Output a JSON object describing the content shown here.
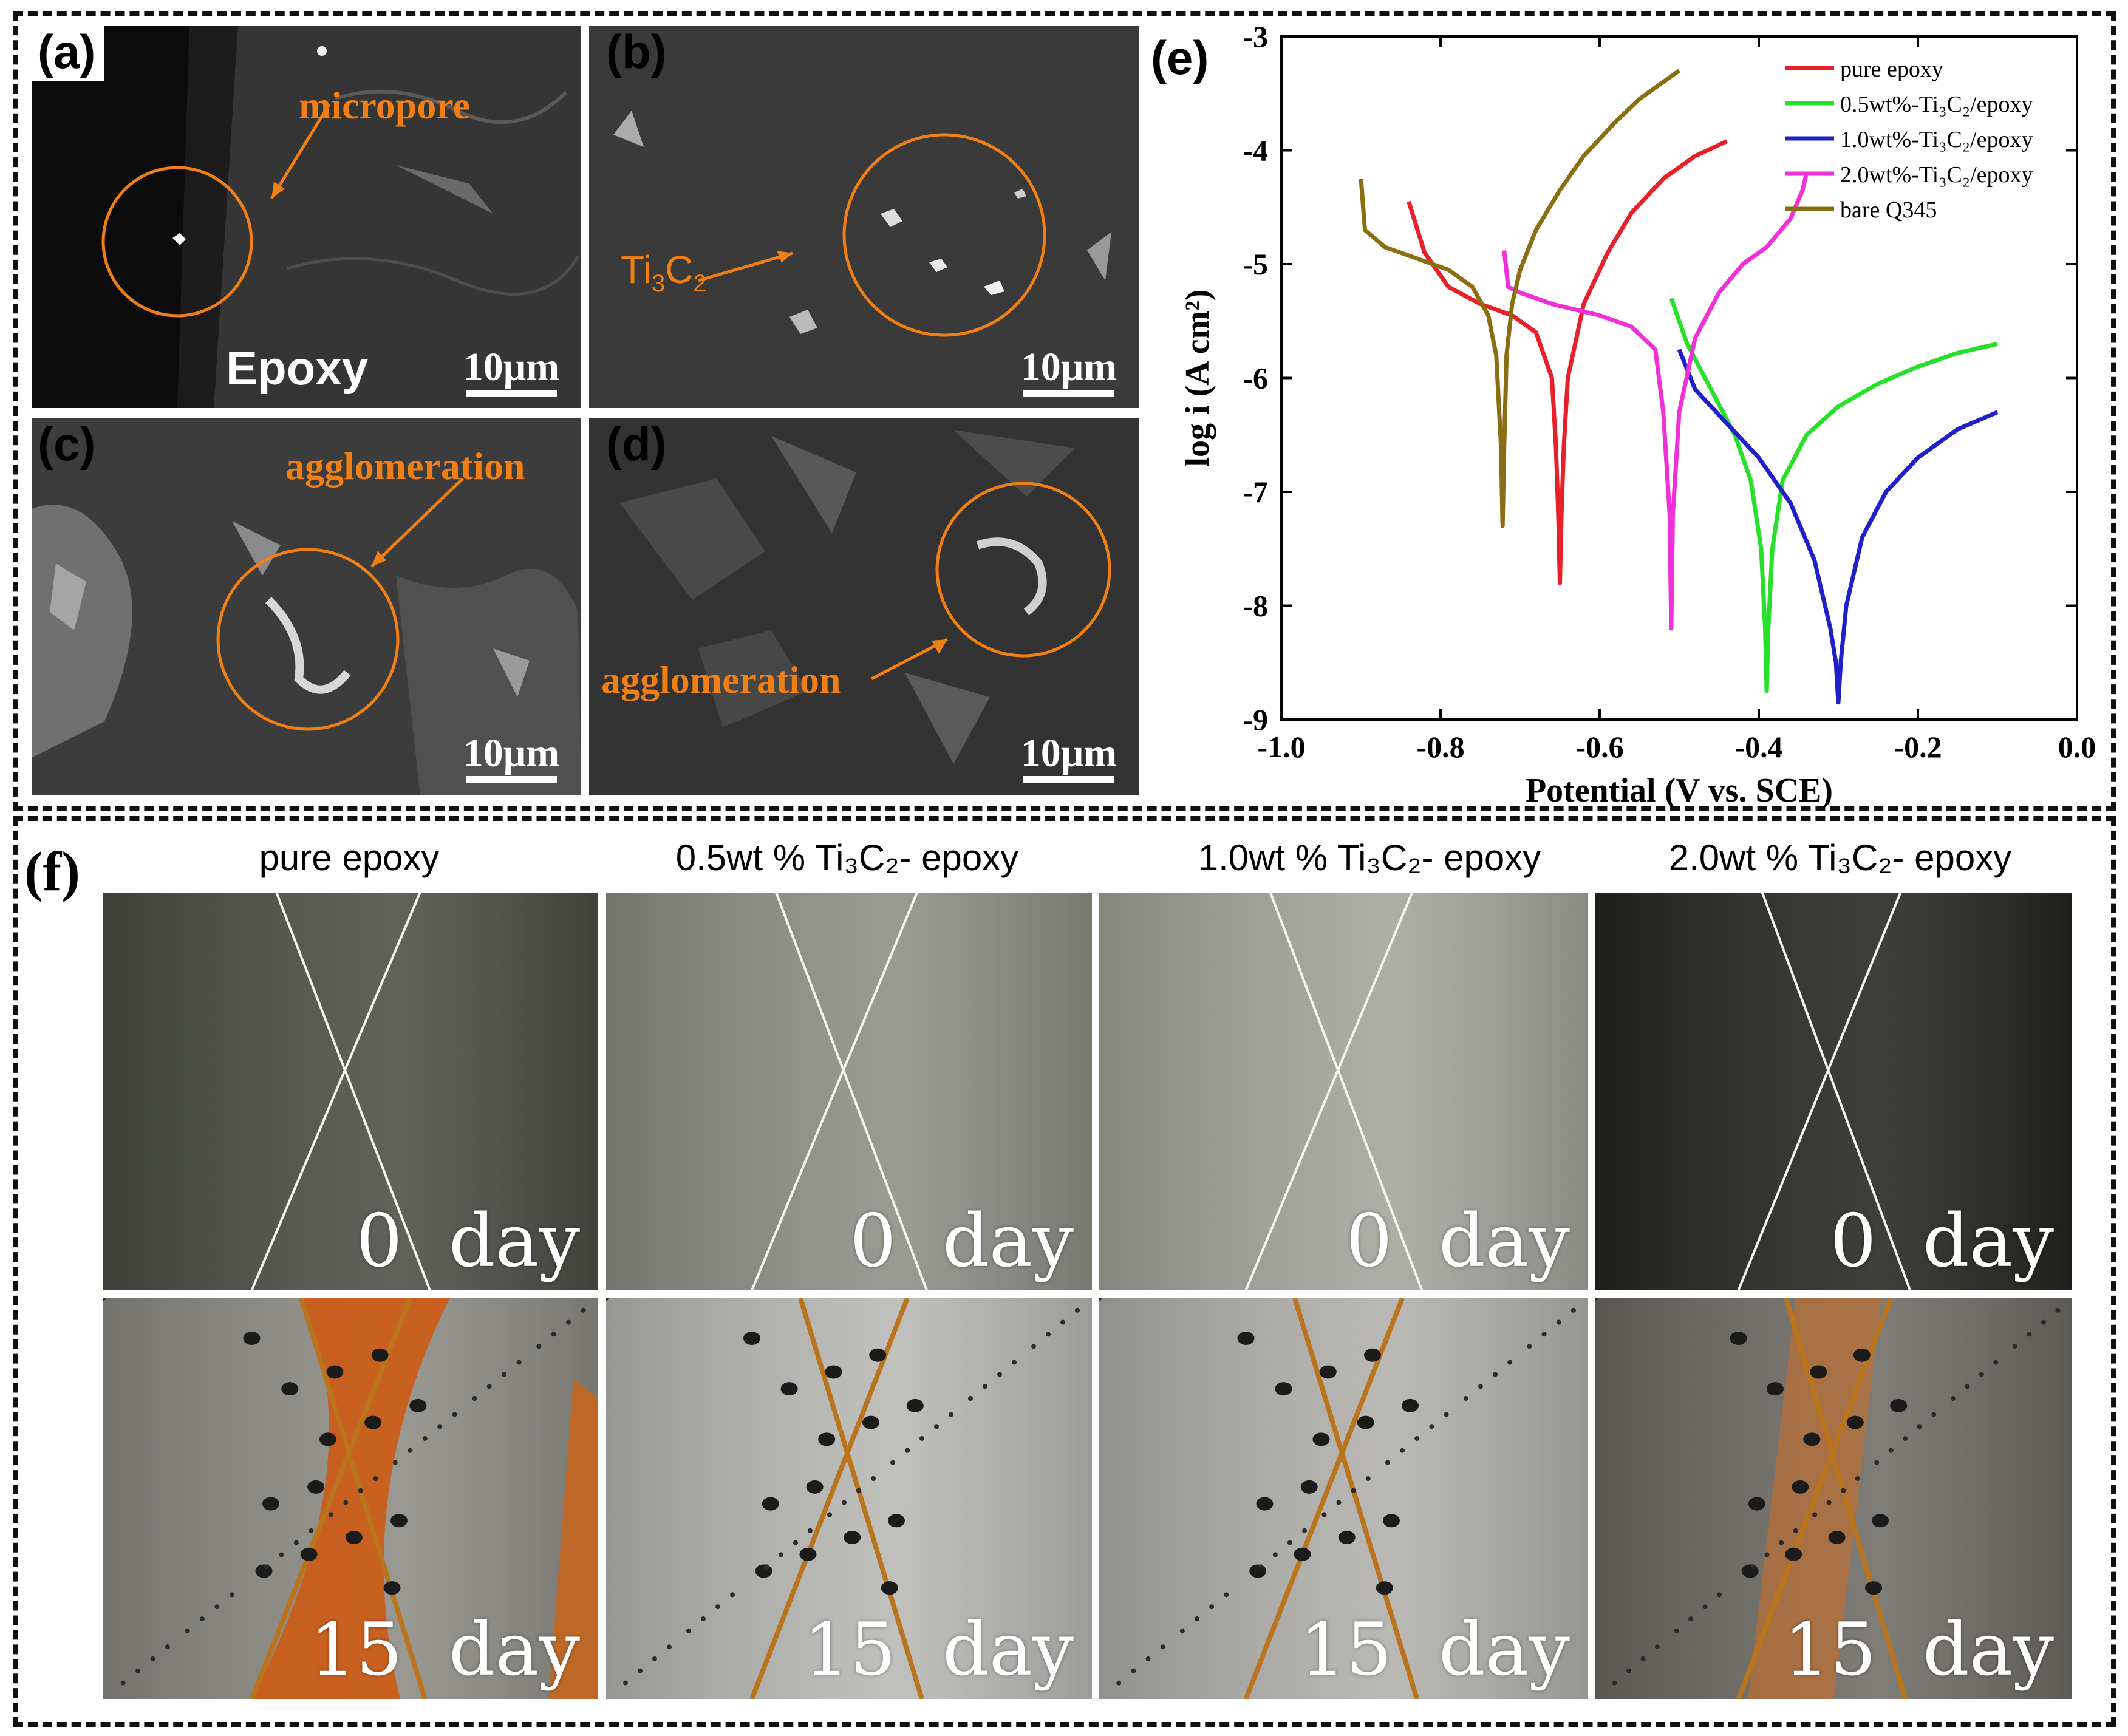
{
  "panels": {
    "a": {
      "label": "(a)",
      "annotation": "micropore",
      "material": "Epoxy",
      "scale": "10μm"
    },
    "b": {
      "label": "(b)",
      "annotation_main": "Ti",
      "annotation_sub1": "3",
      "annotation_mid": "C",
      "annotation_sub2": "2",
      "scale": "10μm"
    },
    "c": {
      "label": "(c)",
      "annotation": "agglomeration",
      "scale": "10μm"
    },
    "d": {
      "label": "(d)",
      "annotation": "agglomeration",
      "scale": "10μm"
    },
    "e": {
      "label": "(e)"
    },
    "f": {
      "label": "(f)"
    }
  },
  "photo_columns": [
    {
      "title": "pure epoxy",
      "top_label": "0  day",
      "bottom_label": "15  day"
    },
    {
      "title": "0.5wt % Ti₃C₂- epoxy",
      "top_label": "0  day",
      "bottom_label": "15  day"
    },
    {
      "title": "1.0wt % Ti₃C₂- epoxy",
      "top_label": "0  day",
      "bottom_label": "15  day"
    },
    {
      "title": "2.0wt % Ti₃C₂- epoxy",
      "top_label": "0  day",
      "bottom_label": "15  day"
    }
  ],
  "chart_data": {
    "type": "line",
    "xlabel": "Potential (V vs. SCE)",
    "ylabel": "log i (A cm²)",
    "xlim": [
      -1.0,
      0.0
    ],
    "ylim": [
      -9,
      -3
    ],
    "xticks": [
      "-1.0",
      "-0.8",
      "-0.6",
      "-0.4",
      "-0.2",
      "0.0"
    ],
    "yticks": [
      "-3",
      "-4",
      "-5",
      "-6",
      "-7",
      "-8",
      "-9"
    ],
    "legend_position": "top-right",
    "series": [
      {
        "name": "pure epoxy",
        "color": "#e8202a",
        "corrosion_potential": -0.65,
        "min_log_i": -7.8,
        "x": [
          -0.84,
          -0.82,
          -0.79,
          -0.75,
          -0.71,
          -0.68,
          -0.66,
          -0.655,
          -0.652,
          -0.65,
          -0.648,
          -0.645,
          -0.64,
          -0.62,
          -0.59,
          -0.56,
          -0.52,
          -0.48,
          -0.44
        ],
        "y": [
          -4.45,
          -4.9,
          -5.2,
          -5.35,
          -5.45,
          -5.6,
          -6.0,
          -6.6,
          -7.2,
          -7.8,
          -7.2,
          -6.6,
          -6.0,
          -5.35,
          -4.9,
          -4.55,
          -4.25,
          -4.05,
          -3.92
        ]
      },
      {
        "name": "0.5wt%-Ti₃C₂/epoxy",
        "color": "#26e02a",
        "corrosion_potential": -0.39,
        "min_log_i": -8.75,
        "x": [
          -0.51,
          -0.49,
          -0.46,
          -0.43,
          -0.41,
          -0.397,
          -0.392,
          -0.39,
          -0.388,
          -0.383,
          -0.37,
          -0.34,
          -0.3,
          -0.25,
          -0.2,
          -0.15,
          -0.1
        ],
        "y": [
          -5.3,
          -5.7,
          -6.1,
          -6.5,
          -6.9,
          -7.5,
          -8.2,
          -8.75,
          -8.2,
          -7.5,
          -6.9,
          -6.5,
          -6.25,
          -6.05,
          -5.9,
          -5.78,
          -5.7
        ]
      },
      {
        "name": "1.0wt%-Ti₃C₂/epoxy",
        "color": "#2020c8",
        "corrosion_potential": -0.3,
        "min_log_i": -8.85,
        "x": [
          -0.5,
          -0.48,
          -0.44,
          -0.4,
          -0.36,
          -0.33,
          -0.31,
          -0.303,
          -0.3,
          -0.297,
          -0.29,
          -0.27,
          -0.24,
          -0.2,
          -0.15,
          -0.1
        ],
        "y": [
          -5.75,
          -6.1,
          -6.4,
          -6.7,
          -7.1,
          -7.6,
          -8.2,
          -8.5,
          -8.85,
          -8.5,
          -8.0,
          -7.4,
          -7.0,
          -6.7,
          -6.45,
          -6.3
        ]
      },
      {
        "name": "2.0wt%-Ti₃C₂/epoxy",
        "color": "#f030d8",
        "corrosion_potential": -0.51,
        "min_log_i": -8.2,
        "x": [
          -0.72,
          -0.715,
          -0.7,
          -0.66,
          -0.6,
          -0.56,
          -0.53,
          -0.52,
          -0.512,
          -0.51,
          -0.508,
          -0.5,
          -0.48,
          -0.45,
          -0.42,
          -0.39,
          -0.36,
          -0.345,
          -0.34
        ],
        "y": [
          -4.88,
          -5.2,
          -5.25,
          -5.35,
          -5.45,
          -5.55,
          -5.75,
          -6.3,
          -7.2,
          -8.2,
          -7.2,
          -6.3,
          -5.65,
          -5.25,
          -5.0,
          -4.85,
          -4.6,
          -4.35,
          -4.2
        ]
      },
      {
        "name": "bare Q345",
        "color": "#8a6e12",
        "corrosion_potential": -0.72,
        "min_log_i": -7.3,
        "x": [
          -0.9,
          -0.895,
          -0.87,
          -0.83,
          -0.79,
          -0.76,
          -0.74,
          -0.73,
          -0.724,
          -0.722,
          -0.72,
          -0.717,
          -0.71,
          -0.7,
          -0.68,
          -0.65,
          -0.62,
          -0.58,
          -0.55,
          -0.52,
          -0.5
        ],
        "y": [
          -4.25,
          -4.7,
          -4.85,
          -4.95,
          -5.05,
          -5.2,
          -5.45,
          -5.8,
          -6.6,
          -7.3,
          -6.6,
          -5.8,
          -5.35,
          -5.05,
          -4.7,
          -4.35,
          -4.05,
          -3.75,
          -3.55,
          -3.4,
          -3.3
        ]
      }
    ]
  }
}
